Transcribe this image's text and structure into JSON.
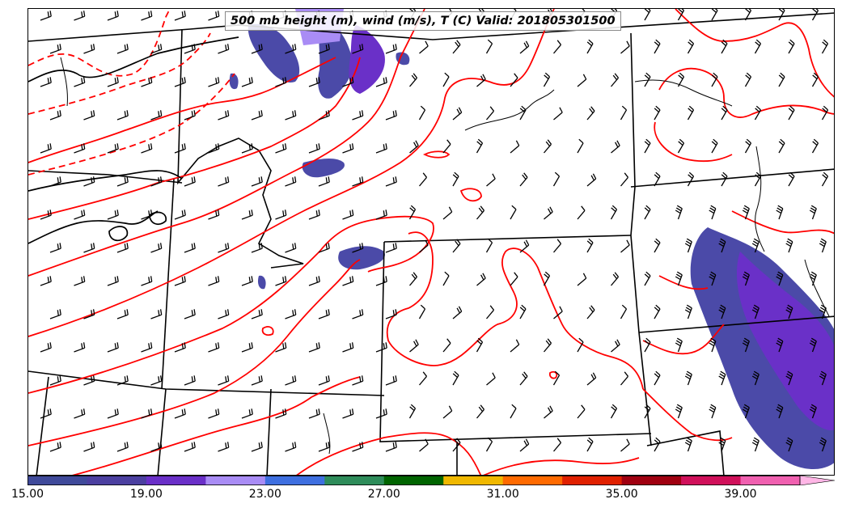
{
  "map": {
    "title": "500 mb height (m), wind (m/s), T (C) Valid: 201805301500",
    "colors": {
      "temperature_contour": "#ff0000",
      "height_contour": "#000000",
      "border": "#000000"
    }
  },
  "colorbar": {
    "colors": [
      "#3f4a9a",
      "#4b3fa0",
      "#6a2fc8",
      "#a98cf5",
      "#3e6fe0",
      "#2e8c5a",
      "#006400",
      "#f0b800",
      "#ff6a00",
      "#e02000",
      "#a00010",
      "#d0105a",
      "#f060b0",
      "#ffb6e6"
    ],
    "tick_labels": [
      "15.00",
      "19.00",
      "23.00",
      "27.00",
      "31.00",
      "35.00",
      "39.00"
    ]
  }
}
